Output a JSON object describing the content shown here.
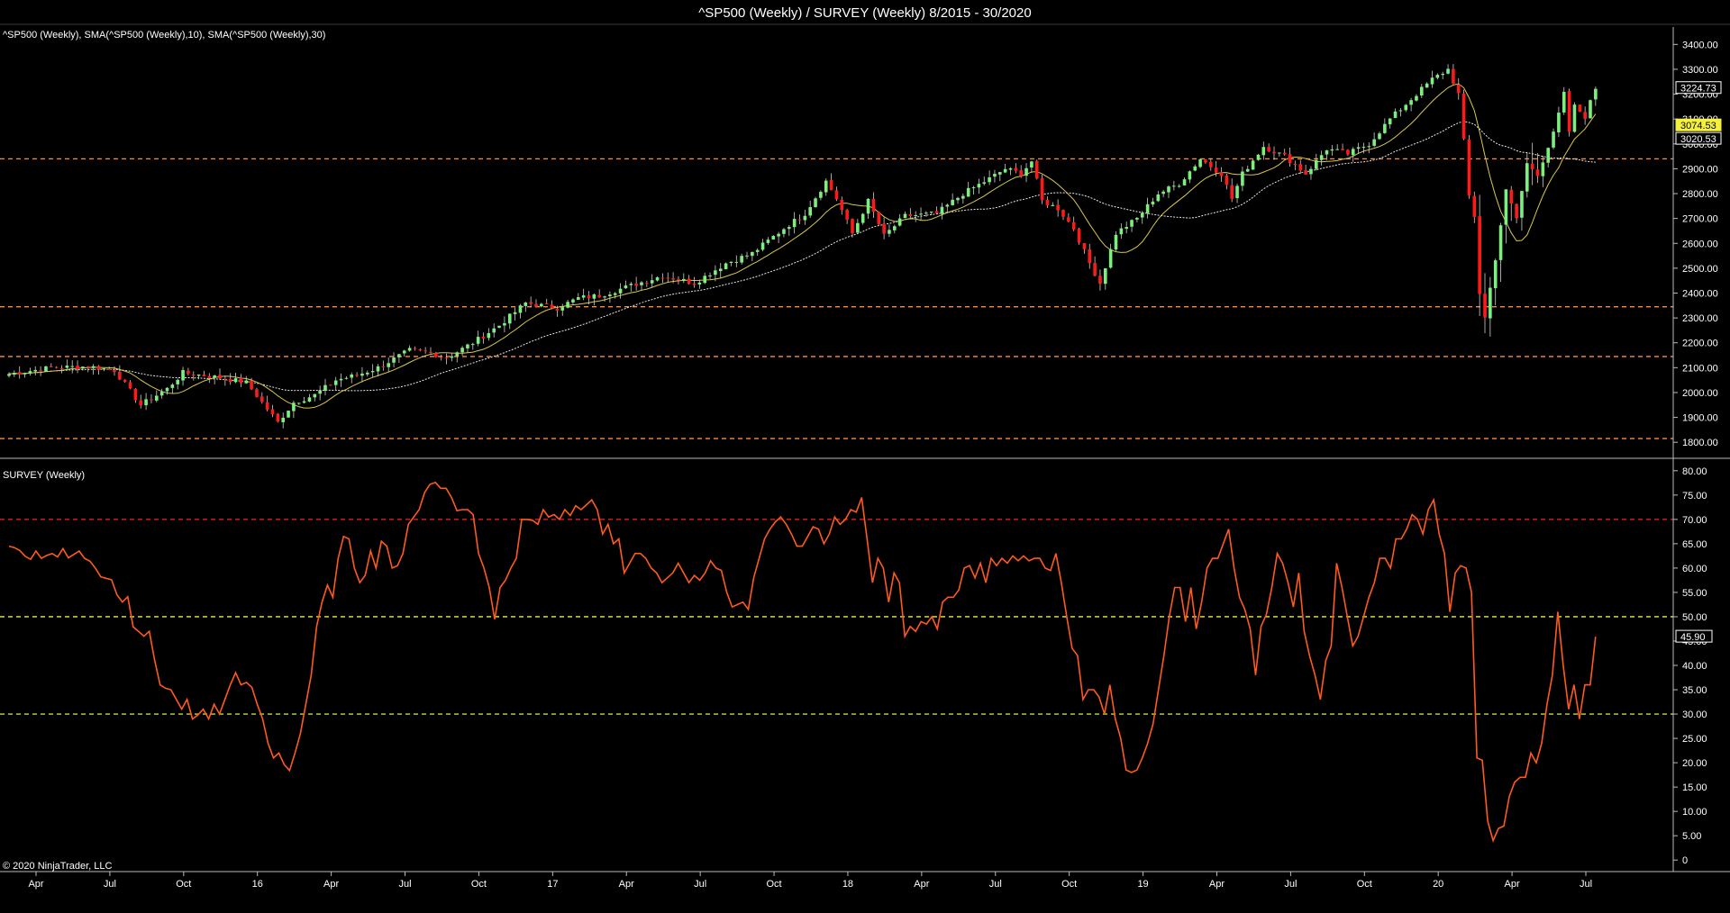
{
  "header": {
    "title": "^SP500 (Weekly) / SURVEY (Weekly)  8/2015 - 30/2020"
  },
  "footer": {
    "copyright": "© 2020 NinjaTrader, LLC"
  },
  "colors": {
    "background": "#000000",
    "up_candle": "#7cf07c",
    "down_candle": "#ff1a1a",
    "sma10": "#d8c84a",
    "sma30": "#e8e8e8",
    "survey_line": "#ff5a1e",
    "level_orange": "#ff8c3a",
    "level_red": "#ff2020",
    "level_yellow": "#f0f040",
    "level_green": "#b8e040"
  },
  "chart_data": [
    {
      "type": "candlestick",
      "panel_label": "^SP500 (Weekly), SMA(^SP500 (Weekly),10), SMA(^SP500 (Weekly),30)",
      "ylim": [
        1750,
        3470
      ],
      "y_ticks": [
        "3400.00",
        "3300.00",
        "3200.00",
        "3100.00",
        "3000.00",
        "2900.00",
        "2800.00",
        "2700.00",
        "2600.00",
        "2500.00",
        "2400.00",
        "2300.00",
        "2200.00",
        "2100.00",
        "2000.00",
        "1900.00",
        "1800.00"
      ],
      "horizontal_levels": [
        2940,
        2345,
        2145,
        1815
      ],
      "price_markers": [
        {
          "label": "3224.73",
          "value": 3224.73,
          "style": "white"
        },
        {
          "label": "3074.53",
          "value": 3074.53,
          "style": "yellow"
        },
        {
          "label": "3020.53",
          "value": 3020.53,
          "style": "white"
        }
      ],
      "x_labels": [
        "Apr",
        "Jul",
        "Oct",
        "16",
        "Apr",
        "Jul",
        "Oct",
        "17",
        "Apr",
        "Jul",
        "Oct",
        "18",
        "Apr",
        "Jul",
        "Oct",
        "19",
        "Apr",
        "Jul",
        "Oct",
        "20",
        "Apr",
        "Jul"
      ],
      "close_anchors": [
        [
          0,
          2075
        ],
        [
          8,
          2100
        ],
        [
          15,
          2105
        ],
        [
          20,
          2090
        ],
        [
          25,
          1950
        ],
        [
          30,
          2015
        ],
        [
          33,
          2080
        ],
        [
          40,
          2060
        ],
        [
          45,
          2040
        ],
        [
          51,
          1880
        ],
        [
          54,
          1960
        ],
        [
          58,
          1990
        ],
        [
          62,
          2050
        ],
        [
          66,
          2070
        ],
        [
          70,
          2100
        ],
        [
          76,
          2170
        ],
        [
          80,
          2160
        ],
        [
          83,
          2140
        ],
        [
          88,
          2200
        ],
        [
          93,
          2270
        ],
        [
          98,
          2360
        ],
        [
          104,
          2340
        ],
        [
          108,
          2380
        ],
        [
          112,
          2390
        ],
        [
          118,
          2430
        ],
        [
          124,
          2470
        ],
        [
          130,
          2440
        ],
        [
          136,
          2520
        ],
        [
          141,
          2560
        ],
        [
          147,
          2660
        ],
        [
          151,
          2720
        ],
        [
          155,
          2850
        ],
        [
          157,
          2780
        ],
        [
          160,
          2640
        ],
        [
          163,
          2770
        ],
        [
          166,
          2630
        ],
        [
          170,
          2710
        ],
        [
          176,
          2720
        ],
        [
          181,
          2800
        ],
        [
          186,
          2860
        ],
        [
          189,
          2900
        ],
        [
          192,
          2880
        ],
        [
          194,
          2930
        ],
        [
          196,
          2770
        ],
        [
          199,
          2740
        ],
        [
          202,
          2660
        ],
        [
          205,
          2520
        ],
        [
          207,
          2440
        ],
        [
          210,
          2640
        ],
        [
          214,
          2700
        ],
        [
          218,
          2800
        ],
        [
          222,
          2840
        ],
        [
          226,
          2940
        ],
        [
          230,
          2880
        ],
        [
          232,
          2780
        ],
        [
          234,
          2880
        ],
        [
          238,
          2990
        ],
        [
          242,
          2950
        ],
        [
          246,
          2880
        ],
        [
          250,
          2980
        ],
        [
          254,
          2960
        ],
        [
          258,
          3000
        ],
        [
          262,
          3100
        ],
        [
          266,
          3180
        ],
        [
          270,
          3260
        ],
        [
          273,
          3300
        ],
        [
          275,
          3200
        ],
        [
          276,
          3010
        ],
        [
          277,
          2790
        ],
        [
          278,
          2710
        ],
        [
          279,
          2400
        ],
        [
          280,
          2300
        ],
        [
          282,
          2540
        ],
        [
          284,
          2810
        ],
        [
          286,
          2700
        ],
        [
          288,
          2920
        ],
        [
          290,
          2880
        ],
        [
          293,
          3040
        ],
        [
          295,
          3200
        ],
        [
          296,
          3050
        ],
        [
          297,
          3150
        ],
        [
          299,
          3110
        ],
        [
          301,
          3224.73
        ]
      ],
      "series": [
        {
          "name": "SMA(^SP500 (Weekly),10)"
        },
        {
          "name": "SMA(^SP500 (Weekly),30)"
        }
      ]
    },
    {
      "type": "line",
      "panel_label": "SURVEY (Weekly)",
      "ylim": [
        -2,
        82
      ],
      "y_ticks": [
        "80.00",
        "75.00",
        "70.00",
        "65.00",
        "60.00",
        "55.00",
        "50.00",
        "45.00",
        "40.00",
        "35.00",
        "30.00",
        "25.00",
        "20.00",
        "15.00",
        "10.00",
        "5.00",
        "0"
      ],
      "horizontal_levels": [
        {
          "value": 70,
          "color": "level_red"
        },
        {
          "value": 50,
          "color": "level_yellow"
        },
        {
          "value": 30,
          "color": "level_green"
        }
      ],
      "last_value_label": "45.90",
      "series": [
        {
          "values": [
            64.5,
            64.2,
            63.6,
            62.4,
            61.8,
            63.5,
            62.0,
            62.6,
            63.0,
            62.3,
            64.0,
            62.1,
            62.8,
            63.5,
            62.0,
            61.4,
            60.0,
            58.2,
            57.9,
            57.6,
            54.5,
            53.0,
            54.1,
            47.9,
            47.0,
            46.0,
            47.0,
            41.0,
            36.0,
            35.3,
            35.0,
            33.0,
            31.0,
            33.0,
            29.0,
            29.8,
            31.0,
            29.0,
            32.0,
            30.0,
            33.0,
            36.0,
            38.5,
            36.0,
            36.5,
            35.5,
            32.0,
            29.0,
            24.0,
            21.0,
            22.0,
            19.6,
            18.4,
            22.0,
            26.0,
            32.0,
            38.0,
            48.0,
            53.0,
            56.5,
            54.0,
            62.0,
            66.5,
            66.0,
            60.0,
            57.0,
            58.5,
            63.5,
            60.0,
            65.5,
            64.5,
            60.0,
            60.5,
            63.0,
            69.0,
            70.5,
            72.0,
            75.5,
            77.2,
            77.6,
            76.4,
            76.4,
            74.5,
            71.8,
            72.0,
            72.0,
            71.0,
            63.0,
            60.0,
            56.0,
            49.5,
            56.0,
            57.5,
            60.0,
            62.0,
            70.0,
            70.0,
            69.8,
            69.0,
            72.0,
            70.5,
            71.0,
            70.0,
            72.0,
            70.8,
            72.8,
            72.0,
            73.0,
            74.0,
            72.0,
            67.0,
            69.0,
            65.0,
            66.0,
            59.0,
            61.0,
            63.0,
            63.0,
            62.0,
            60.0,
            59.0,
            57.0,
            58.0,
            59.0,
            61.0,
            59.0,
            57.0,
            58.5,
            57.5,
            59.0,
            61.5,
            60.0,
            59.5,
            55.0,
            52.0,
            52.5,
            53.0,
            51.5,
            58.0,
            62.0,
            66.0,
            68.0,
            69.5,
            70.5,
            69.0,
            67.0,
            64.5,
            64.5,
            66.5,
            68.5,
            68.0,
            65.0,
            67.0,
            70.5,
            69.0,
            70.0,
            72.0,
            71.5,
            74.5,
            66.0,
            57.0,
            62.0,
            60.0,
            53.0,
            59.0,
            57.0,
            46.0,
            48.0,
            47.0,
            49.0,
            48.5,
            50.0,
            47.5,
            53.0,
            54.0,
            54.0,
            55.5,
            60.0,
            60.5,
            58.0,
            61.0,
            57.0,
            62.0,
            60.5,
            62.0,
            61.0,
            62.5,
            61.5,
            62.5,
            61.5,
            62.0,
            62.0,
            60.0,
            59.5,
            63.0,
            57.0,
            50.0,
            43.5,
            42.0,
            33.0,
            35.0,
            35.0,
            33.5,
            30.0,
            36.0,
            29.0,
            25.0,
            18.5,
            18.0,
            18.5,
            21.0,
            24.0,
            28.0,
            35.0,
            42.0,
            50.0,
            56.0,
            56.0,
            49.0,
            56.0,
            47.5,
            53.0,
            60.0,
            62.0,
            62.0,
            65.0,
            68.0,
            60.0,
            54.0,
            51.5,
            47.5,
            38.0,
            48.0,
            50.5,
            56.0,
            63.0,
            61.0,
            57.0,
            52.0,
            59.0,
            47.0,
            42.0,
            38.0,
            33.0,
            41.0,
            44.0,
            61.0,
            56.0,
            50.0,
            44.0,
            46.0,
            50.0,
            54.0,
            57.0,
            62.0,
            62.0,
            60.0,
            66.0,
            66.0,
            68.0,
            71.0,
            70.0,
            67.0,
            72.0,
            74.0,
            67.0,
            63.0,
            51.0,
            59.0,
            60.5,
            60.0,
            55.0,
            21.0,
            20.5,
            8.0,
            4.0,
            6.5,
            7.0,
            13.0,
            16.0,
            17.0,
            17.0,
            22.0,
            20.0,
            24.0,
            32.0,
            38.0,
            51.0,
            40.0,
            31.0,
            36.0,
            29.0,
            36.0,
            36.0,
            45.9
          ]
        }
      ]
    }
  ]
}
